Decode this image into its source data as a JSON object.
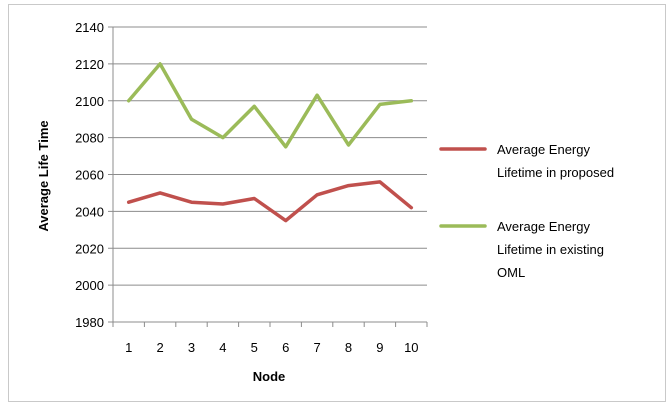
{
  "chart_data": {
    "type": "line",
    "title": "",
    "xlabel": "Node",
    "ylabel": "Average Life Time",
    "x": [
      1,
      2,
      3,
      4,
      5,
      6,
      7,
      8,
      9,
      10
    ],
    "ylim": [
      1980,
      2140
    ],
    "yticks": [
      1980,
      2000,
      2020,
      2040,
      2060,
      2080,
      2100,
      2120,
      2140
    ],
    "grid": "horizontal",
    "legend_position": "right",
    "series": [
      {
        "name_lines": [
          "Average Energy",
          "Lifetime in proposed"
        ],
        "color": "#c0504d",
        "values": [
          2045,
          2050,
          2045,
          2044,
          2047,
          2035,
          2049,
          2054,
          2056,
          2042
        ]
      },
      {
        "name_lines": [
          "Average Energy",
          "Lifetime in existing",
          "OML"
        ],
        "color": "#9bbb59",
        "values": [
          2100,
          2120,
          2090,
          2080,
          2097,
          2075,
          2103,
          2076,
          2098,
          2100
        ]
      }
    ]
  }
}
